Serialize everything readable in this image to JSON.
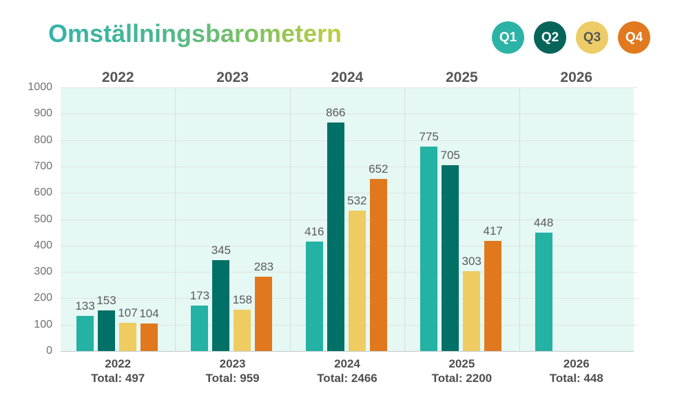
{
  "title": "Omställningsbarometern",
  "legend": [
    {
      "label": "Q1",
      "color": "#2BB3A6",
      "text_color": "#ffffff"
    },
    {
      "label": "Q2",
      "color": "#076459",
      "text_color": "#ffffff"
    },
    {
      "label": "Q3",
      "color": "#EDCC67",
      "text_color": "#565656"
    },
    {
      "label": "Q4",
      "color": "#E1791E",
      "text_color": "#ffffff"
    }
  ],
  "chart_data": {
    "type": "bar",
    "title": "Omställningsbarometern",
    "categories": [
      "2022",
      "2023",
      "2024",
      "2025",
      "2026"
    ],
    "series": [
      {
        "name": "Q1",
        "color": "#23B2A4",
        "values": [
          133,
          173,
          416,
          775,
          448
        ]
      },
      {
        "name": "Q2",
        "color": "#017066",
        "values": [
          153,
          345,
          866,
          705,
          null
        ]
      },
      {
        "name": "Q3",
        "color": "#EECC62",
        "values": [
          107,
          158,
          532,
          303,
          null
        ]
      },
      {
        "name": "Q4",
        "color": "#E1781D",
        "values": [
          104,
          283,
          652,
          417,
          null
        ]
      }
    ],
    "totals": [
      497,
      959,
      2466,
      2200,
      448
    ],
    "total_label_prefix": "Total: ",
    "ylim": [
      0,
      1000
    ],
    "ytick_step": 100,
    "grid": true,
    "plot_bg": "#E5F8F4",
    "legend_position": "top-right"
  }
}
